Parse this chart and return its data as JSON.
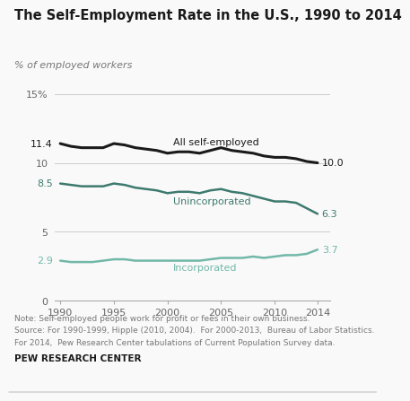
{
  "title": "The Self-Employment Rate in the U.S., 1990 to 2014",
  "ylabel": "% of employed workers",
  "note_line1": "Note: Self-employed people work for profit or fees in their own business.",
  "note_line2": "Source: For 1990-1999, Hipple (2010, 2004).  For 2000-2013,  Bureau of Labor Statistics.",
  "note_line3": "For 2014,  Pew Research Center tabulations of Current Population Survey data.",
  "note_line4": "PEW RESEARCH CENTER",
  "all_self_employed": {
    "years": [
      1990,
      1991,
      1992,
      1993,
      1994,
      1995,
      1996,
      1997,
      1998,
      1999,
      2000,
      2001,
      2002,
      2003,
      2004,
      2005,
      2006,
      2007,
      2008,
      2009,
      2010,
      2011,
      2012,
      2013,
      2014
    ],
    "values": [
      11.4,
      11.2,
      11.1,
      11.1,
      11.1,
      11.4,
      11.3,
      11.1,
      11.0,
      10.9,
      10.7,
      10.8,
      10.8,
      10.7,
      10.9,
      11.1,
      10.9,
      10.8,
      10.7,
      10.5,
      10.4,
      10.4,
      10.3,
      10.1,
      10.0
    ],
    "color": "#1a1a1a",
    "label": "All self-employed",
    "start_val": "11.4",
    "end_val": "10.0"
  },
  "unincorporated": {
    "years": [
      1990,
      1991,
      1992,
      1993,
      1994,
      1995,
      1996,
      1997,
      1998,
      1999,
      2000,
      2001,
      2002,
      2003,
      2004,
      2005,
      2006,
      2007,
      2008,
      2009,
      2010,
      2011,
      2012,
      2013,
      2014
    ],
    "values": [
      8.5,
      8.4,
      8.3,
      8.3,
      8.3,
      8.5,
      8.4,
      8.2,
      8.1,
      8.0,
      7.8,
      7.9,
      7.9,
      7.8,
      8.0,
      8.1,
      7.9,
      7.8,
      7.6,
      7.4,
      7.2,
      7.2,
      7.1,
      6.7,
      6.3
    ],
    "color": "#3d7a6e",
    "label": "Unincorporated",
    "start_val": "8.5",
    "end_val": "6.3"
  },
  "incorporated": {
    "years": [
      1990,
      1991,
      1992,
      1993,
      1994,
      1995,
      1996,
      1997,
      1998,
      1999,
      2000,
      2001,
      2002,
      2003,
      2004,
      2005,
      2006,
      2007,
      2008,
      2009,
      2010,
      2011,
      2012,
      2013,
      2014
    ],
    "values": [
      2.9,
      2.8,
      2.8,
      2.8,
      2.9,
      3.0,
      3.0,
      2.9,
      2.9,
      2.9,
      2.9,
      2.9,
      2.9,
      2.9,
      3.0,
      3.1,
      3.1,
      3.1,
      3.2,
      3.1,
      3.2,
      3.3,
      3.3,
      3.4,
      3.7
    ],
    "color": "#72b8a8",
    "label": "Incorporated",
    "start_val": "2.9",
    "end_val": "3.7"
  },
  "ylim": [
    0,
    15
  ],
  "yticks": [
    0,
    5,
    10,
    15
  ],
  "ytick_labels": [
    "0",
    "5",
    "10",
    "15%"
  ],
  "xticks": [
    1990,
    1995,
    2000,
    2005,
    2010,
    2014
  ],
  "background_color": "#f9f9f9"
}
